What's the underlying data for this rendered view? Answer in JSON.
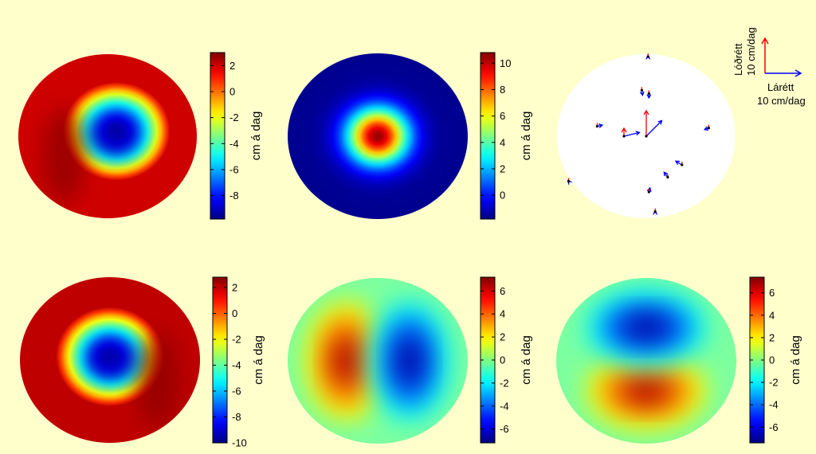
{
  "figure": {
    "background": "#ffffcc",
    "colormap": "jet"
  },
  "chart_data": [
    {
      "type": "heatmap",
      "shape": "disc",
      "pattern": "ring-depression, dark ring in lower-left",
      "center_value": -9.5,
      "ring_value": 3,
      "ring_bias": "lower-left",
      "colorbar": {
        "label": "cm á dag",
        "min": -9.8,
        "max": 3,
        "ticks": [
          2,
          0,
          -2,
          -4,
          -6,
          -8
        ]
      }
    },
    {
      "type": "heatmap",
      "shape": "disc",
      "pattern": "central peak",
      "center_value": 10.5,
      "edge_value": -1.6,
      "colorbar": {
        "label": "cm á dag",
        "min": -1.8,
        "max": 10.8,
        "ticks": [
          10,
          8,
          6,
          4,
          2,
          0
        ]
      }
    },
    {
      "type": "vector",
      "shape": "disc",
      "disc_color": "#ffffff",
      "horizontal_color": "#0000ff",
      "vertical_color": "#ff0000",
      "scale_legend": {
        "vertical_label": "Lóðrétt",
        "vertical_speed": "10 cm/dag",
        "horizontal_label": "Lárétt",
        "horizontal_speed": "10 cm/dag"
      },
      "vectors": [
        {
          "x": 0.02,
          "y": 0.97,
          "u": 0,
          "v": 0.3
        },
        {
          "x": -0.05,
          "y": 0.56,
          "u": 0.15,
          "v": -1.6
        },
        {
          "x": 0.03,
          "y": 0.52,
          "u": 0,
          "v": -1.4
        },
        {
          "x": 0.0,
          "y": 0.0,
          "u": 3.0,
          "v": 5.0
        },
        {
          "x": -0.25,
          "y": 0.0,
          "u": 3.0,
          "v": 1.2
        },
        {
          "x": -0.55,
          "y": 0.12,
          "u": 1.0,
          "v": 0.4
        },
        {
          "x": 0.7,
          "y": 0.1,
          "u": -0.8,
          "v": -0.5
        },
        {
          "x": 0.4,
          "y": -0.35,
          "u": -1.2,
          "v": 1.2
        },
        {
          "x": 0.24,
          "y": -0.5,
          "u": -0.7,
          "v": 1.6
        },
        {
          "x": 0.03,
          "y": -0.68,
          "u": 0.2,
          "v": 1.3
        },
        {
          "x": 0.1,
          "y": -0.92,
          "u": 0,
          "v": 0.2
        },
        {
          "x": -0.87,
          "y": -0.55,
          "u": -0.1,
          "v": 0.2
        }
      ]
    },
    {
      "type": "heatmap",
      "shape": "disc",
      "pattern": "ring-depression, dark ring in lower-right",
      "center_value": -9.5,
      "ring_value": 3,
      "ring_bias": "lower-right",
      "colorbar": {
        "label": "cm á dag",
        "min": -10,
        "max": 2.8,
        "ticks": [
          2,
          0,
          -2,
          -4,
          -6,
          -8,
          -10
        ]
      }
    },
    {
      "type": "heatmap",
      "shape": "disc",
      "pattern": "dipole: positive left, negative right",
      "peak_value": 7,
      "colorbar": {
        "label": "cm á dag",
        "min": -7.2,
        "max": 7.2,
        "ticks": [
          6,
          4,
          2,
          0,
          -2,
          -4,
          -6
        ]
      }
    },
    {
      "type": "heatmap",
      "shape": "disc",
      "pattern": "dipole: negative top, positive bottom",
      "peak_value": 7,
      "colorbar": {
        "label": "cm á dag",
        "min": -7.4,
        "max": 7.4,
        "ticks": [
          6,
          4,
          2,
          0,
          -2,
          -4,
          -6
        ]
      }
    }
  ]
}
